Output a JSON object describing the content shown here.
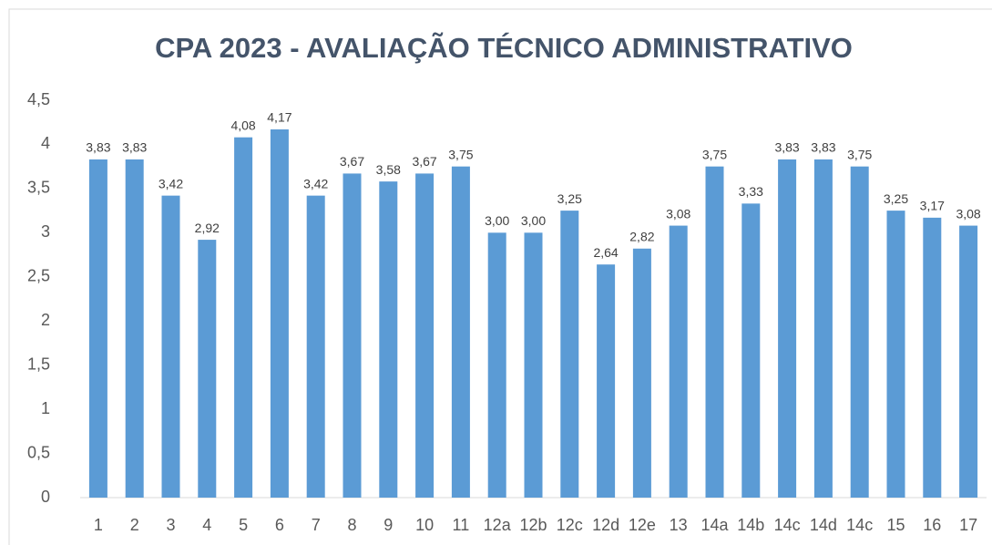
{
  "chart_data": {
    "type": "bar",
    "title": "CPA 2023 - AVALIAÇÃO TÉCNICO ADMINISTRATIVO",
    "categories": [
      "1",
      "2",
      "3",
      "4",
      "5",
      "6",
      "7",
      "8",
      "9",
      "10",
      "11",
      "12a",
      "12b",
      "12c",
      "12d",
      "12e",
      "13",
      "14a",
      "14b",
      "14c",
      "14d",
      "14c",
      "15",
      "16",
      "17"
    ],
    "values": [
      3.83,
      3.83,
      3.42,
      2.92,
      4.08,
      4.17,
      3.42,
      3.67,
      3.58,
      3.67,
      3.75,
      3.0,
      3.0,
      3.25,
      2.64,
      2.82,
      3.08,
      3.75,
      3.33,
      3.83,
      3.83,
      3.75,
      3.25,
      3.17,
      3.08
    ],
    "value_labels": [
      "3,83",
      "3,83",
      "3,42",
      "2,92",
      "4,08",
      "4,17",
      "3,42",
      "3,67",
      "3,58",
      "3,67",
      "3,75",
      "3,00",
      "3,00",
      "3,25",
      "2,64",
      "2,82",
      "3,08",
      "3,75",
      "3,33",
      "3,83",
      "3,83",
      "3,75",
      "3,25",
      "3,17",
      "3,08"
    ],
    "color": "#5b9bd5",
    "ylim": [
      0,
      4.5
    ],
    "yticks": [
      0,
      {
        "value": 0.5,
        "label": "0,5"
      },
      1,
      {
        "value": 1.5,
        "label": "1,5"
      },
      2,
      {
        "value": 2.5,
        "label": "2,5"
      },
      3,
      {
        "value": 3.5,
        "label": "3,5"
      },
      4,
      {
        "value": 4.5,
        "label": "4,5"
      }
    ],
    "grid": false
  }
}
